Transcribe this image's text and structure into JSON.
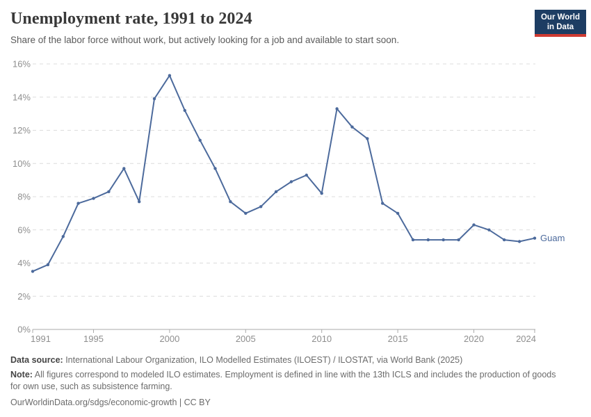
{
  "chart_data": {
    "type": "line",
    "title": "Unemployment rate, 1991 to 2024",
    "subtitle": "Share of the labor force without work, but actively looking for a job and available to start soon.",
    "x": [
      1991,
      1992,
      1993,
      1994,
      1995,
      1996,
      1997,
      1998,
      1999,
      2000,
      2001,
      2002,
      2003,
      2004,
      2005,
      2006,
      2007,
      2008,
      2009,
      2010,
      2011,
      2012,
      2013,
      2014,
      2015,
      2016,
      2017,
      2018,
      2019,
      2020,
      2021,
      2022,
      2023,
      2024
    ],
    "series": [
      {
        "name": "Guam",
        "color": "#4c6a9c",
        "values": [
          3.5,
          3.9,
          5.6,
          7.6,
          7.9,
          8.3,
          9.7,
          7.7,
          13.9,
          15.3,
          13.2,
          11.4,
          9.7,
          7.7,
          7.0,
          7.4,
          8.3,
          8.9,
          9.3,
          8.2,
          13.3,
          12.2,
          11.5,
          7.6,
          7.0,
          5.4,
          5.4,
          5.4,
          5.4,
          6.3,
          6.0,
          5.4,
          5.3,
          5.5
        ]
      }
    ],
    "xlim": [
      1991,
      2024
    ],
    "ylim": [
      0,
      16
    ],
    "ytick_values": [
      0,
      2,
      4,
      6,
      8,
      10,
      12,
      14,
      16
    ],
    "ytick_labels": [
      "0%",
      "2%",
      "4%",
      "6%",
      "8%",
      "10%",
      "12%",
      "14%",
      "16%"
    ],
    "xtick_values": [
      1991,
      1995,
      2000,
      2005,
      2010,
      2015,
      2020,
      2024
    ],
    "xtick_labels": [
      "1991",
      "1995",
      "2000",
      "2005",
      "2010",
      "2015",
      "2020",
      "2024"
    ],
    "grid": "horizontal-dashed",
    "legend_position": "end-of-line-label"
  },
  "logo": {
    "line1": "Our World",
    "line2": "in Data",
    "bg_color": "#1d3d63",
    "stripe_color": "#cf3b32"
  },
  "footer": {
    "datasource_label": "Data source:",
    "datasource_text": " International Labour Organization, ILO Modelled Estimates (ILOEST) / ILOSTAT, via World Bank (2025)",
    "note_label": "Note:",
    "note_text": " All figures correspond to modeled ILO estimates. Employment is defined in line with the 13th ICLS and includes the production of goods for own use, such as subsistence farming.",
    "citation_url": "OurWorldinData.org/sdgs/economic-growth",
    "citation_separator": " | ",
    "citation_license": "CC BY"
  }
}
